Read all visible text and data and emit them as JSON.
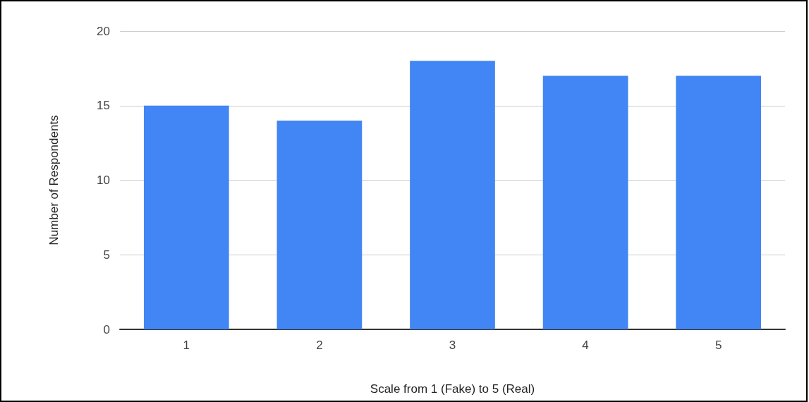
{
  "chart_data": {
    "type": "bar",
    "xlabel": "Scale from 1 (Fake) to 5 (Real)",
    "ylabel": "Number of Respondents",
    "categories": [
      "1",
      "2",
      "3",
      "4",
      "5"
    ],
    "values": [
      15,
      14,
      18,
      17,
      17
    ],
    "color": "#4285f4",
    "ylim": [
      0,
      20
    ],
    "yticks": [
      0,
      5,
      10,
      15,
      20
    ],
    "grid": "y"
  }
}
